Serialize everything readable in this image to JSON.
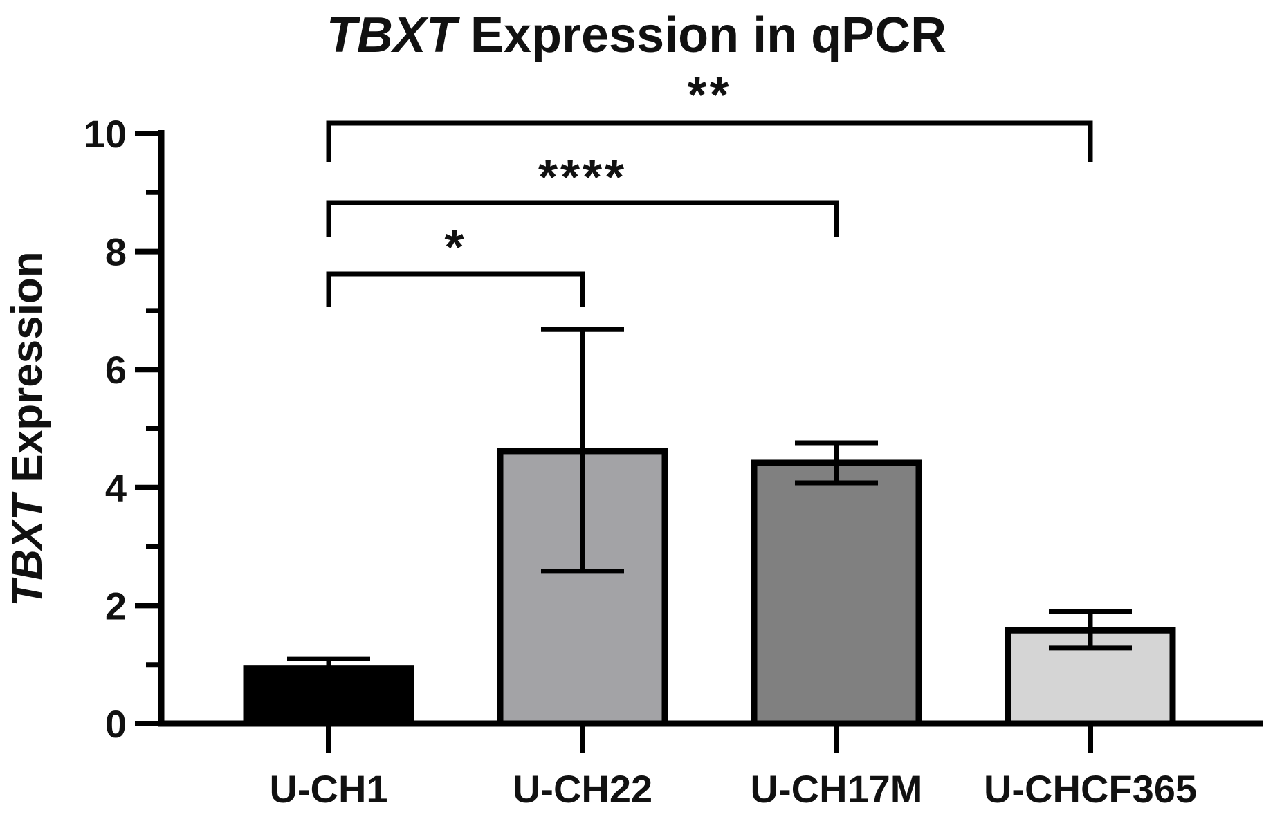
{
  "chart_data": {
    "type": "bar",
    "title": {
      "italic_part": "TBXT",
      "rest": " Expression in qPCR"
    },
    "ylabel": {
      "italic_part": "TBXT",
      "rest": " Expression"
    },
    "xlabel": "",
    "ylim": [
      0,
      10
    ],
    "yticks_major": [
      0,
      2,
      4,
      6,
      8,
      10
    ],
    "yticks_minor": [
      1,
      3,
      5,
      7,
      9
    ],
    "categories": [
      "U-CH1",
      "U-CH22",
      "U-CH17M",
      "U-CHCF365"
    ],
    "values": [
      0.93,
      4.62,
      4.42,
      1.58
    ],
    "error_low": [
      0.93,
      2.58,
      4.08,
      1.28
    ],
    "error_high": [
      1.1,
      6.68,
      4.76,
      1.9
    ],
    "bar_colors": [
      "#000000",
      "#a3a3a6",
      "#808080",
      "#d5d5d5"
    ],
    "significance": [
      {
        "from": "U-CH1",
        "to": "U-CH22",
        "label": "*"
      },
      {
        "from": "U-CH1",
        "to": "U-CH17M",
        "label": "****"
      },
      {
        "from": "U-CH1",
        "to": "U-CHCF365",
        "label": "**"
      }
    ],
    "grid": false,
    "legend": "none"
  }
}
